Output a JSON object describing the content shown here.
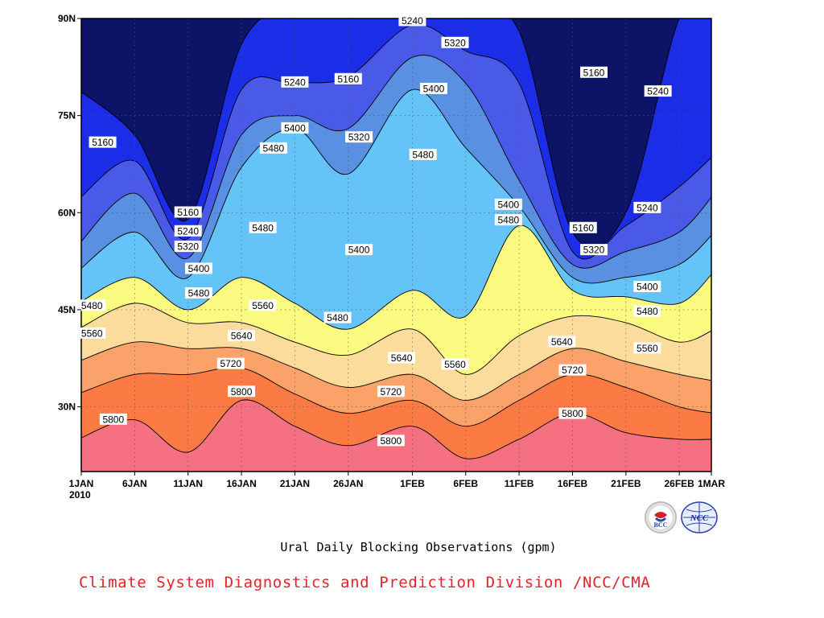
{
  "chart_data": {
    "type": "heatmap",
    "subtype": "filled-contour",
    "title": "Ural Daily Blocking Observations (gpm)",
    "x_tick_labels": [
      "1JAN",
      "6JAN",
      "11JAN",
      "16JAN",
      "21JAN",
      "26JAN",
      "1FEB",
      "6FEB",
      "11FEB",
      "16FEB",
      "21FEB",
      "26FEB",
      "1MAR"
    ],
    "x_year_label": "2010",
    "y_tick_labels": [
      "30N",
      "45N",
      "60N",
      "75N",
      "90N"
    ],
    "xlim": [
      "2010-01-01",
      "2010-03-01"
    ],
    "ylim_deg": [
      20,
      90
    ],
    "grid": true,
    "contour_levels": [
      5160,
      5240,
      5320,
      5400,
      5480,
      5560,
      5640,
      5720,
      5800
    ],
    "level_colors": [
      "#0d1366",
      "#1b2de6",
      "#4a5ae8",
      "#5a90e2",
      "#64c4f8",
      "#fafa80",
      "#fbdc9c",
      "#fba26a",
      "#fc7a43",
      "#f57080"
    ],
    "series": [
      {
        "level": 5160,
        "x": [
          "2010-01-01",
          "2010-01-06",
          "2010-01-11",
          "2010-01-16",
          "2010-01-21",
          "2010-01-26",
          "2010-02-01",
          "2010-02-06",
          "2010-02-11",
          "2010-02-16",
          "2010-02-21",
          "2010-02-26",
          "2010-03-01"
        ],
        "y": [
          79,
          72,
          59,
          86,
          92,
          92,
          92,
          92,
          88,
          57,
          60,
          90,
          92
        ]
      },
      {
        "level": 5240,
        "x": [
          "2010-01-01",
          "2010-01-06",
          "2010-01-11",
          "2010-01-16",
          "2010-01-21",
          "2010-01-26",
          "2010-02-01",
          "2010-02-06",
          "2010-02-11",
          "2010-02-16",
          "2010-02-21",
          "2010-02-26",
          "2010-03-01"
        ],
        "y": [
          62,
          68,
          56,
          79,
          80,
          81,
          89,
          85,
          80,
          54,
          58,
          64,
          69
        ]
      },
      {
        "level": 5320,
        "x": [
          "2010-01-01",
          "2010-01-06",
          "2010-01-11",
          "2010-01-16",
          "2010-01-21",
          "2010-01-26",
          "2010-02-01",
          "2010-02-06",
          "2010-02-11",
          "2010-02-16",
          "2010-02-21",
          "2010-02-26",
          "2010-03-01"
        ],
        "y": [
          55,
          63,
          53,
          72,
          75,
          73,
          84,
          80,
          65,
          52,
          54,
          57,
          63
        ]
      },
      {
        "level": 5400,
        "x": [
          "2010-01-01",
          "2010-01-06",
          "2010-01-11",
          "2010-01-16",
          "2010-01-21",
          "2010-01-26",
          "2010-02-01",
          "2010-02-06",
          "2010-02-11",
          "2010-02-16",
          "2010-02-21",
          "2010-02-26",
          "2010-03-01"
        ],
        "y": [
          51,
          57,
          50,
          67,
          73,
          66,
          79,
          70,
          61,
          50,
          50,
          52,
          57
        ]
      },
      {
        "level": 5480,
        "x": [
          "2010-01-01",
          "2010-01-06",
          "2010-01-11",
          "2010-01-16",
          "2010-01-21",
          "2010-01-26",
          "2010-02-01",
          "2010-02-06",
          "2010-02-11",
          "2010-02-16",
          "2010-02-21",
          "2010-02-26",
          "2010-03-01"
        ],
        "y": [
          46,
          50,
          45,
          50,
          46,
          42,
          48,
          44,
          58,
          48,
          47,
          46,
          51
        ]
      },
      {
        "level": 5560,
        "x": [
          "2010-01-01",
          "2010-01-06",
          "2010-01-11",
          "2010-01-16",
          "2010-01-21",
          "2010-01-26",
          "2010-02-01",
          "2010-02-06",
          "2010-02-11",
          "2010-02-16",
          "2010-02-21",
          "2010-02-26",
          "2010-03-01"
        ],
        "y": [
          42,
          46,
          43,
          43,
          40,
          38,
          42,
          35,
          41,
          44,
          43,
          40,
          42
        ]
      },
      {
        "level": 5640,
        "x": [
          "2010-01-01",
          "2010-01-06",
          "2010-01-11",
          "2010-01-16",
          "2010-01-21",
          "2010-01-26",
          "2010-02-01",
          "2010-02-06",
          "2010-02-11",
          "2010-02-16",
          "2010-02-21",
          "2010-02-26",
          "2010-03-01"
        ],
        "y": [
          37,
          40,
          39,
          39,
          36,
          33,
          35,
          31,
          35,
          39,
          37,
          35,
          34
        ]
      },
      {
        "level": 5720,
        "x": [
          "2010-01-01",
          "2010-01-06",
          "2010-01-11",
          "2010-01-16",
          "2010-01-21",
          "2010-01-26",
          "2010-02-01",
          "2010-02-06",
          "2010-02-11",
          "2010-02-16",
          "2010-02-21",
          "2010-02-26",
          "2010-03-01"
        ],
        "y": [
          32,
          35,
          35,
          36,
          32,
          29,
          31,
          27,
          31,
          35,
          33,
          30,
          29
        ]
      },
      {
        "level": 5800,
        "x": [
          "2010-01-01",
          "2010-01-06",
          "2010-01-11",
          "2010-01-16",
          "2010-01-21",
          "2010-01-26",
          "2010-02-01",
          "2010-02-06",
          "2010-02-11",
          "2010-02-16",
          "2010-02-21",
          "2010-02-26",
          "2010-03-01"
        ],
        "y": [
          25,
          28,
          23,
          31,
          27,
          24,
          27,
          22,
          25,
          29,
          26,
          25,
          25
        ]
      }
    ],
    "annotations": [
      {
        "text": "5240",
        "x": "2010-02-01",
        "y": 89.7
      },
      {
        "text": "5320",
        "x": "2010-02-05",
        "y": 86.3
      },
      {
        "text": "5160",
        "x": "2010-02-18",
        "y": 81.7
      },
      {
        "text": "5240",
        "x": "2010-02-24",
        "y": 78.8
      },
      {
        "text": "5400",
        "x": "2010-02-03",
        "y": 79.2
      },
      {
        "text": "5240",
        "x": "2010-01-21",
        "y": 80.2
      },
      {
        "text": "5160",
        "x": "2010-01-26",
        "y": 80.7
      },
      {
        "text": "5160",
        "x": "2010-01-03",
        "y": 70.9
      },
      {
        "text": "5400",
        "x": "2010-01-21",
        "y": 73.1
      },
      {
        "text": "5320",
        "x": "2010-01-27",
        "y": 71.7
      },
      {
        "text": "5480",
        "x": "2010-01-19",
        "y": 70.0
      },
      {
        "text": "5480",
        "x": "2010-02-02",
        "y": 69.0
      },
      {
        "text": "5400",
        "x": "2010-02-10",
        "y": 61.3
      },
      {
        "text": "5240",
        "x": "2010-02-23",
        "y": 60.8
      },
      {
        "text": "5480",
        "x": "2010-02-10",
        "y": 58.9
      },
      {
        "text": "5160",
        "x": "2010-01-11",
        "y": 60.1
      },
      {
        "text": "5240",
        "x": "2010-01-11",
        "y": 57.2
      },
      {
        "text": "5480",
        "x": "2010-01-18",
        "y": 57.7
      },
      {
        "text": "5160",
        "x": "2010-02-17",
        "y": 57.7
      },
      {
        "text": "5320",
        "x": "2010-01-11",
        "y": 54.8
      },
      {
        "text": "5320",
        "x": "2010-02-18",
        "y": 54.3
      },
      {
        "text": "5400",
        "x": "2010-01-27",
        "y": 54.3
      },
      {
        "text": "5400",
        "x": "2010-01-12",
        "y": 51.4
      },
      {
        "text": "5400",
        "x": "2010-02-23",
        "y": 48.6
      },
      {
        "text": "5480",
        "x": "2010-01-12",
        "y": 47.6
      },
      {
        "text": "5480",
        "x": "2010-01-02",
        "y": 45.7
      },
      {
        "text": "5560",
        "x": "2010-01-18",
        "y": 45.7
      },
      {
        "text": "5480",
        "x": "2010-02-23",
        "y": 44.8
      },
      {
        "text": "5480",
        "x": "2010-01-25",
        "y": 43.8
      },
      {
        "text": "5560",
        "x": "2010-01-02",
        "y": 41.4
      },
      {
        "text": "5640",
        "x": "2010-01-16",
        "y": 41.0
      },
      {
        "text": "5640",
        "x": "2010-02-15",
        "y": 40.1
      },
      {
        "text": "5560",
        "x": "2010-02-23",
        "y": 39.1
      },
      {
        "text": "5640",
        "x": "2010-01-31",
        "y": 37.6
      },
      {
        "text": "5560",
        "x": "2010-02-05",
        "y": 36.6
      },
      {
        "text": "5720",
        "x": "2010-01-15",
        "y": 36.7
      },
      {
        "text": "5720",
        "x": "2010-02-16",
        "y": 35.7
      },
      {
        "text": "5800",
        "x": "2010-01-16",
        "y": 32.4
      },
      {
        "text": "5720",
        "x": "2010-01-30",
        "y": 32.4
      },
      {
        "text": "5800",
        "x": "2010-01-04",
        "y": 28.1
      },
      {
        "text": "5800",
        "x": "2010-02-16",
        "y": 29.0
      },
      {
        "text": "5800",
        "x": "2010-01-30",
        "y": 24.8
      }
    ]
  },
  "footer": {
    "credit": "Climate System Diagnostics and Prediction Division /NCC/CMA"
  },
  "logos": {
    "left_text": "BCC",
    "right_text": "NCC"
  }
}
